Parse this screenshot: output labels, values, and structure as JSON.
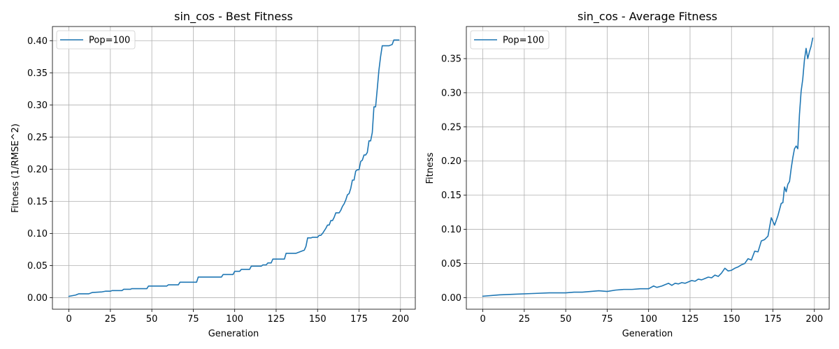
{
  "figure": {
    "line_color": "#1f77b4"
  },
  "chart_data": [
    {
      "type": "line",
      "title": "sin_cos - Best Fitness",
      "xlabel": "Generation",
      "ylabel": "Fitness (1/RMSE^2)",
      "xlim": [
        -9.95,
        208.95
      ],
      "ylim": [
        -0.018,
        0.422
      ],
      "xticks": [
        0,
        25,
        50,
        75,
        100,
        125,
        150,
        175,
        200
      ],
      "xtick_labels": [
        "0",
        "25",
        "50",
        "75",
        "100",
        "125",
        "150",
        "175",
        "200"
      ],
      "yticks": [
        0.0,
        0.05,
        0.1,
        0.15,
        0.2,
        0.25,
        0.3,
        0.35,
        0.4
      ],
      "ytick_labels": [
        "0.00",
        "0.05",
        "0.10",
        "0.15",
        "0.20",
        "0.25",
        "0.30",
        "0.35",
        "0.40"
      ],
      "grid": true,
      "legend_position": "upper-left",
      "series": [
        {
          "name": "Pop=100",
          "x": [
            0,
            4,
            6,
            12,
            14,
            20,
            22,
            25,
            26,
            32,
            33,
            37,
            38,
            47,
            48,
            59,
            60,
            66,
            67,
            77,
            78,
            84,
            85,
            92,
            93,
            99,
            100,
            103,
            104,
            109,
            110,
            116,
            117,
            119,
            120,
            122,
            123,
            125,
            126,
            130,
            131,
            136,
            137,
            141,
            142,
            143,
            144,
            146,
            147,
            149,
            150,
            151,
            152,
            153,
            154,
            155,
            156,
            157,
            158,
            159,
            160,
            161,
            162,
            163,
            164,
            165,
            166,
            167,
            168,
            169,
            170,
            171,
            172,
            173,
            174,
            175,
            176,
            177,
            178,
            179,
            180,
            181,
            182,
            183,
            184,
            185,
            186,
            187,
            188,
            189,
            190,
            191,
            192,
            193,
            194,
            195,
            196,
            197,
            198,
            199
          ],
          "y": [
            0.002,
            0.004,
            0.006,
            0.006,
            0.008,
            0.009,
            0.01,
            0.01,
            0.011,
            0.011,
            0.013,
            0.013,
            0.014,
            0.014,
            0.018,
            0.018,
            0.02,
            0.02,
            0.024,
            0.024,
            0.032,
            0.032,
            0.032,
            0.032,
            0.036,
            0.036,
            0.041,
            0.041,
            0.044,
            0.044,
            0.049,
            0.049,
            0.051,
            0.051,
            0.054,
            0.054,
            0.06,
            0.06,
            0.06,
            0.06,
            0.069,
            0.069,
            0.069,
            0.073,
            0.074,
            0.08,
            0.093,
            0.093,
            0.094,
            0.094,
            0.094,
            0.097,
            0.097,
            0.1,
            0.104,
            0.108,
            0.113,
            0.113,
            0.12,
            0.12,
            0.125,
            0.132,
            0.132,
            0.132,
            0.136,
            0.142,
            0.146,
            0.152,
            0.16,
            0.162,
            0.17,
            0.183,
            0.183,
            0.197,
            0.199,
            0.199,
            0.212,
            0.214,
            0.222,
            0.222,
            0.226,
            0.244,
            0.244,
            0.257,
            0.297,
            0.297,
            0.325,
            0.354,
            0.375,
            0.392,
            0.392,
            0.392,
            0.392,
            0.392,
            0.393,
            0.394,
            0.401,
            0.401,
            0.401,
            0.401
          ]
        }
      ]
    },
    {
      "type": "line",
      "title": "sin_cos - Average Fitness",
      "xlabel": "Generation",
      "ylabel": "Fitness",
      "xlim": [
        -9.95,
        208.95
      ],
      "ylim": [
        -0.017,
        0.397
      ],
      "xticks": [
        0,
        25,
        50,
        75,
        100,
        125,
        150,
        175,
        200
      ],
      "xtick_labels": [
        "0",
        "25",
        "50",
        "75",
        "100",
        "125",
        "150",
        "175",
        "200"
      ],
      "yticks": [
        0.0,
        0.05,
        0.1,
        0.15,
        0.2,
        0.25,
        0.3,
        0.35
      ],
      "ytick_labels": [
        "0.00",
        "0.05",
        "0.10",
        "0.15",
        "0.20",
        "0.25",
        "0.30",
        "0.35"
      ],
      "grid": true,
      "legend_position": "upper-left",
      "series": [
        {
          "name": "Pop=100",
          "x": [
            0,
            10,
            20,
            30,
            40,
            50,
            55,
            60,
            65,
            70,
            75,
            80,
            85,
            90,
            95,
            100,
            103,
            105,
            108,
            110,
            112,
            114,
            116,
            118,
            120,
            122,
            124,
            126,
            128,
            130,
            132,
            134,
            136,
            138,
            140,
            142,
            144,
            146,
            148,
            150,
            152,
            154,
            156,
            158,
            160,
            162,
            164,
            166,
            168,
            170,
            172,
            174,
            176,
            178,
            180,
            181,
            182,
            183,
            184,
            185,
            186,
            187,
            188,
            189,
            190,
            191,
            192,
            193,
            194,
            195,
            196,
            197,
            198,
            199
          ],
          "y": [
            0.002,
            0.004,
            0.005,
            0.006,
            0.007,
            0.007,
            0.008,
            0.008,
            0.009,
            0.01,
            0.009,
            0.011,
            0.012,
            0.012,
            0.013,
            0.013,
            0.017,
            0.015,
            0.017,
            0.019,
            0.021,
            0.018,
            0.021,
            0.02,
            0.022,
            0.021,
            0.023,
            0.025,
            0.024,
            0.027,
            0.026,
            0.028,
            0.03,
            0.029,
            0.033,
            0.031,
            0.036,
            0.043,
            0.039,
            0.04,
            0.043,
            0.045,
            0.048,
            0.05,
            0.057,
            0.055,
            0.068,
            0.067,
            0.083,
            0.085,
            0.09,
            0.117,
            0.106,
            0.12,
            0.138,
            0.139,
            0.162,
            0.155,
            0.166,
            0.17,
            0.189,
            0.205,
            0.218,
            0.222,
            0.218,
            0.268,
            0.302,
            0.32,
            0.348,
            0.365,
            0.35,
            0.36,
            0.368,
            0.38
          ]
        }
      ]
    }
  ]
}
